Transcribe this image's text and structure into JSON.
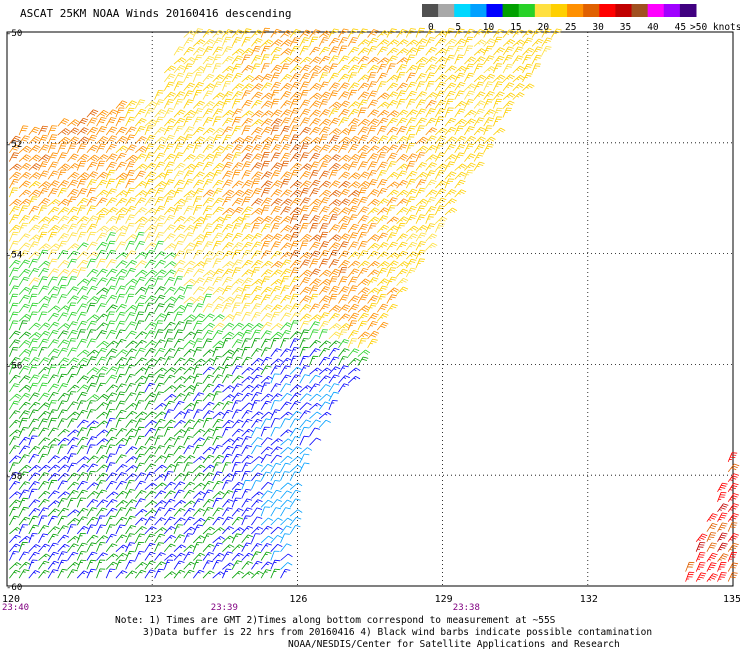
{
  "chart_data": {
    "type": "wind-barb-map",
    "title": "ASCAT 25KM NOAA Winds 20160416 descending",
    "x_ticks": [
      "120",
      "123",
      "126",
      "129",
      "132",
      "135"
    ],
    "y_ticks": [
      "-50",
      "-52",
      "-54",
      "-56",
      "-58",
      "-60"
    ],
    "xlim": [
      120,
      135
    ],
    "ylim": [
      -60,
      -50
    ],
    "grid": true,
    "colorbar": {
      "labels": [
        "0",
        "5",
        "10",
        "15",
        "20",
        "25",
        "30",
        "35",
        "40",
        "45",
        ">50 knots"
      ],
      "colors": [
        "#505050",
        "#a8a8a8",
        "#00d8ff",
        "#00a0ff",
        "#0000ff",
        "#00a000",
        "#28d228",
        "#ffe040",
        "#ffd000",
        "#ff9000",
        "#e06000",
        "#ff0000",
        "#c00000",
        "#a05020",
        "#ff00ff",
        "#a000ff",
        "#400080"
      ]
    },
    "time_labels": [
      {
        "text": "23:40",
        "x": 120
      },
      {
        "text": "23:39",
        "x": 124.5
      },
      {
        "text": "23:38",
        "x": 129.5
      }
    ],
    "notes": [
      "Note: 1) Times are GMT 2)Times along bottom correspond to measurement at ~55S",
      "3)Data buffer is 22 hrs from 20160416 4) Black wind barbs indicate possible contamination",
      "NOAA/NESDIS/Center for Satellite Applications and Research"
    ],
    "wind_regions": [
      {
        "name": "northwest",
        "lon": [
          120,
          122.5
        ],
        "lat": [
          -53,
          -51.8
        ],
        "speed_kt": 30
      },
      {
        "name": "north-central",
        "lon": [
          123,
          128.5
        ],
        "lat": [
          -51.5,
          -50
        ],
        "speed_kt": 25
      },
      {
        "name": "center",
        "lon": [
          124,
          128
        ],
        "lat": [
          -53.8,
          -51.3
        ],
        "speed_kt": 30
      },
      {
        "name": "west",
        "lon": [
          120,
          124
        ],
        "lat": [
          -56.5,
          -53.5
        ],
        "speed_kt": 20
      },
      {
        "name": "central-south",
        "lon": [
          122.5,
          126.5
        ],
        "lat": [
          -57.5,
          -55.5
        ],
        "speed_kt": 15
      },
      {
        "name": "southeast of swath",
        "lon": [
          125,
          127
        ],
        "lat": [
          -58.3,
          -56.8
        ],
        "speed_kt": 10
      },
      {
        "name": "far southeast",
        "lon": [
          134,
          135
        ],
        "lat": [
          -60,
          -57.5
        ],
        "speed_kt": 35
      }
    ]
  }
}
